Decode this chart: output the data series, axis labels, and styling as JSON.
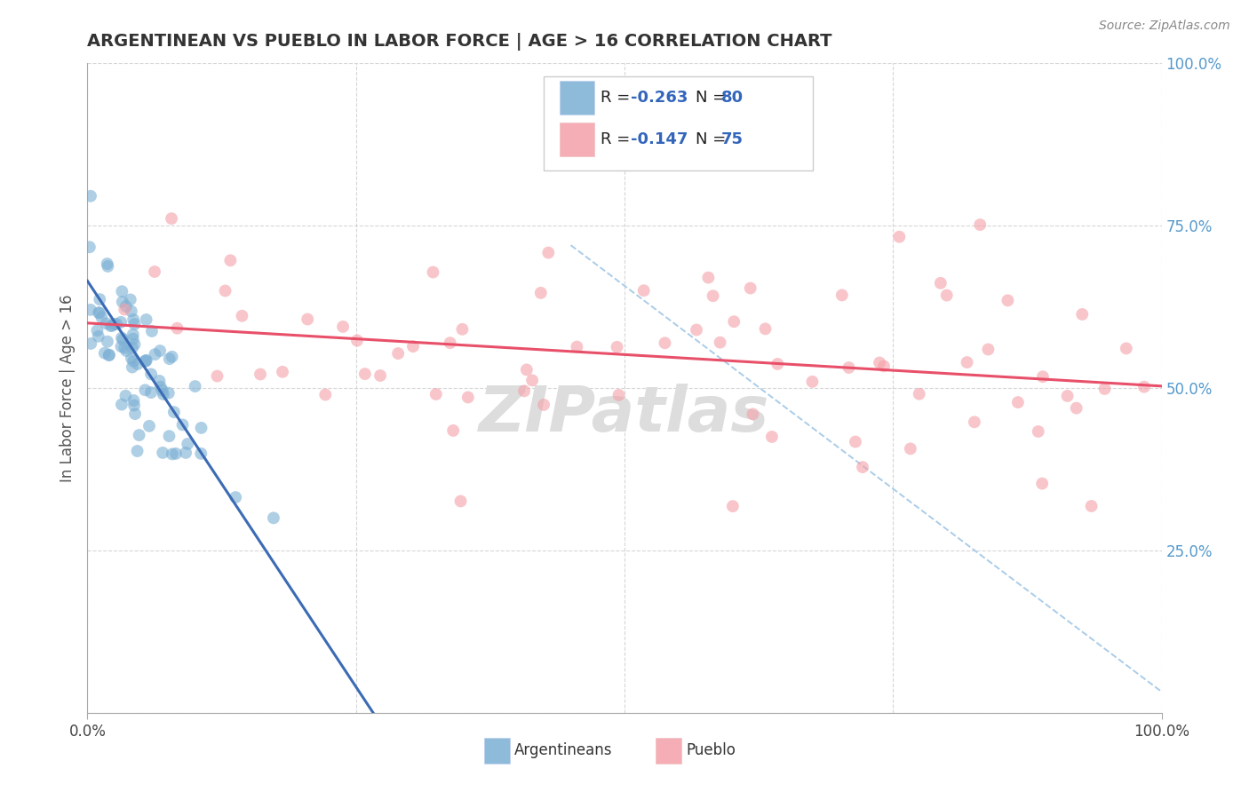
{
  "title": "ARGENTINEAN VS PUEBLO IN LABOR FORCE | AGE > 16 CORRELATION CHART",
  "source": "Source: ZipAtlas.com",
  "ylabel": "In Labor Force | Age > 16",
  "xlim": [
    0.0,
    1.0
  ],
  "ylim": [
    0.0,
    1.0
  ],
  "legend_R1": "R = -0.263",
  "legend_N1": "N = 80",
  "legend_R2": "R = -0.147",
  "legend_N2": "N = 75",
  "color_argentinean": "#7BAFD4",
  "color_pueblo": "#F4A0A8",
  "color_trend_argentinean": "#3B6BB5",
  "color_trend_pueblo": "#E8506A",
  "color_dashed": "#AACCE8",
  "background_color": "#FFFFFF",
  "grid_color": "#CCCCCC",
  "watermark_color": "#DDDDDD",
  "right_tick_color": "#5599CC",
  "legend_text_color_R": "#3366BB",
  "legend_text_color_N": "#222222"
}
